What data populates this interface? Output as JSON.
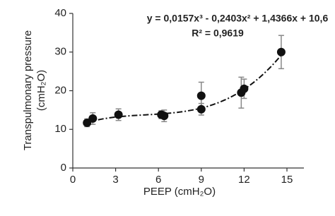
{
  "chart_data": {
    "type": "scatter",
    "x_label": "PEEP (cmH₂O)",
    "y_label": [
      "Transpulmonary pressure",
      "(cmH₂O)"
    ],
    "x": [
      1,
      1.4,
      3.2,
      6.2,
      6.4,
      9,
      9,
      11.8,
      12,
      14.6
    ],
    "values": [
      11.7,
      12.8,
      13.8,
      13.8,
      13.5,
      18.7,
      15.2,
      19.5,
      20.5,
      30
    ],
    "errors": [
      1,
      1.5,
      1.5,
      1,
      1.5,
      3.5,
      1.5,
      4,
      2.5,
      4.3
    ],
    "color": "#111111",
    "error_color": "#888888",
    "trendline": {
      "coefficients": [
        0.0157,
        -0.2403,
        1.4366,
        10.6
      ],
      "equation": "y = 0,0157x³ - 0,2403x² + 1,4366x + 10,6",
      "r2": "R² = 0,9619"
    },
    "xlim": [
      0,
      15
    ],
    "xticks": [
      0,
      3,
      6,
      9,
      12,
      15
    ],
    "ylim": [
      0,
      40
    ],
    "yticks": [
      0,
      10,
      20,
      30,
      40
    ]
  }
}
